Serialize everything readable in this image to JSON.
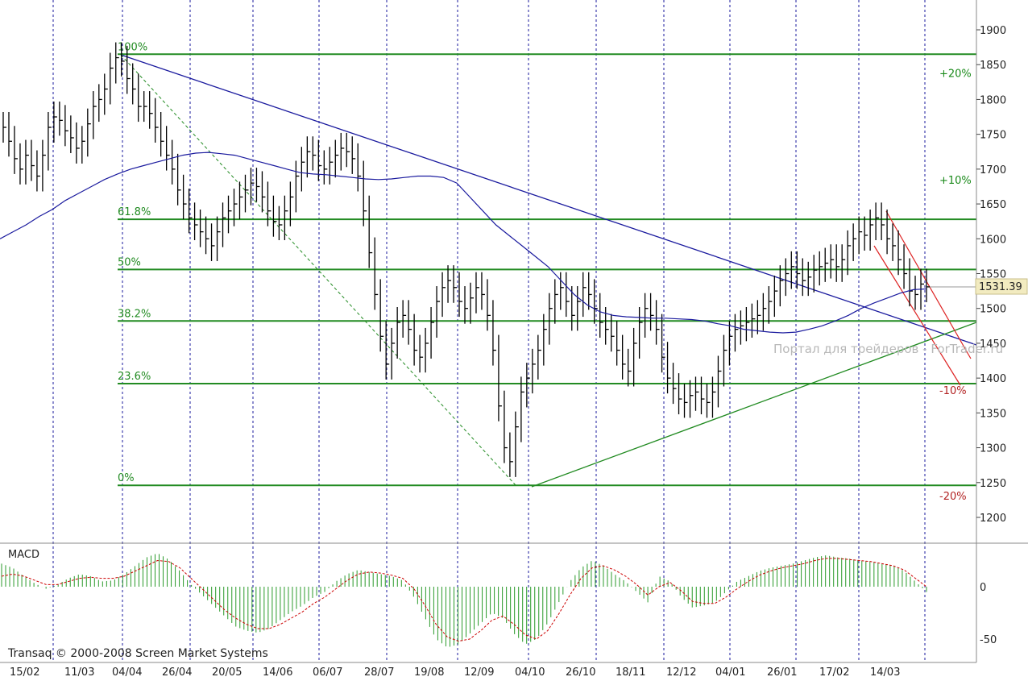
{
  "chart_data": {
    "type": "bar",
    "price_axis": {
      "ticks": [
        1900,
        1850,
        1800,
        1750,
        1700,
        1650,
        1600,
        1550,
        1500,
        1450,
        1400,
        1350,
        1300,
        1250,
        1200
      ],
      "range": [
        1180,
        1920
      ]
    },
    "date_axis": {
      "labels": [
        "15/02",
        "11/03",
        "04/04",
        "26/04",
        "20/05",
        "14/06",
        "06/07",
        "28/07",
        "19/08",
        "12/09",
        "04/10",
        "26/10",
        "18/11",
        "12/12",
        "04/01",
        "26/01",
        "17/02",
        "14/03"
      ]
    },
    "last_price": "1531.39",
    "fibonacci": [
      {
        "label": "100%",
        "value": 1865
      },
      {
        "label": "61.8%",
        "value": 1628
      },
      {
        "label": "50%",
        "value": 1556
      },
      {
        "label": "38.2%",
        "value": 1482
      },
      {
        "label": "23.6%",
        "value": 1392
      },
      {
        "label": "0%",
        "value": 1246
      }
    ],
    "percent_labels": [
      {
        "label": "+20%",
        "value": 1838,
        "sign": "pos"
      },
      {
        "label": "+10%",
        "value": 1685,
        "sign": "pos"
      },
      {
        "label": "-10%",
        "value": 1383,
        "sign": "neg"
      },
      {
        "label": "-20%",
        "value": 1231,
        "sign": "neg"
      }
    ],
    "price_series": [
      1760,
      1740,
      1715,
      1700,
      1720,
      1705,
      1690,
      1720,
      1760,
      1775,
      1770,
      1755,
      1745,
      1730,
      1740,
      1765,
      1790,
      1800,
      1815,
      1845,
      1860,
      1855,
      1830,
      1815,
      1790,
      1790,
      1780,
      1760,
      1740,
      1720,
      1700,
      1670,
      1650,
      1630,
      1620,
      1610,
      1600,
      1590,
      1610,
      1630,
      1640,
      1650,
      1660,
      1670,
      1680,
      1675,
      1660,
      1640,
      1625,
      1620,
      1640,
      1660,
      1690,
      1710,
      1725,
      1720,
      1705,
      1700,
      1710,
      1720,
      1730,
      1725,
      1715,
      1690,
      1640,
      1580,
      1520,
      1460,
      1420,
      1450,
      1480,
      1490,
      1470,
      1440,
      1430,
      1450,
      1480,
      1510,
      1530,
      1540,
      1530,
      1510,
      1500,
      1515,
      1530,
      1520,
      1490,
      1440,
      1360,
      1300,
      1280,
      1330,
      1380,
      1400,
      1420,
      1440,
      1470,
      1500,
      1520,
      1530,
      1510,
      1490,
      1510,
      1530,
      1520,
      1500,
      1480,
      1470,
      1460,
      1440,
      1420,
      1410,
      1450,
      1480,
      1500,
      1490,
      1470,
      1430,
      1400,
      1385,
      1370,
      1365,
      1375,
      1380,
      1370,
      1365,
      1380,
      1410,
      1440,
      1460,
      1470,
      1475,
      1480,
      1485,
      1490,
      1500,
      1510,
      1525,
      1540,
      1550,
      1560,
      1550,
      1540,
      1545,
      1555,
      1560,
      1565,
      1570,
      1560,
      1570,
      1590,
      1600,
      1610,
      1605,
      1620,
      1630,
      1620,
      1600,
      1590,
      1570,
      1550,
      1525,
      1520,
      1535,
      1531
    ],
    "ma_series": [
      1600,
      1610,
      1620,
      1632,
      1642,
      1655,
      1665,
      1675,
      1685,
      1693,
      1700,
      1705,
      1710,
      1715,
      1720,
      1723,
      1724,
      1722,
      1720,
      1715,
      1710,
      1705,
      1700,
      1695,
      1693,
      1692,
      1690,
      1688,
      1686,
      1685,
      1686,
      1688,
      1690,
      1690,
      1688,
      1680,
      1660,
      1640,
      1620,
      1605,
      1590,
      1575,
      1560,
      1540,
      1520,
      1505,
      1495,
      1490,
      1488,
      1487,
      1486,
      1486,
      1485,
      1484,
      1482,
      1478,
      1475,
      1470,
      1468,
      1466,
      1465,
      1466,
      1470,
      1475,
      1482,
      1490,
      1500,
      1508,
      1515,
      1522,
      1527,
      1528
    ],
    "macd": {
      "title": "MACD",
      "ticks": [
        0,
        -50
      ],
      "range": [
        -65,
        35
      ],
      "histogram": [
        22,
        18,
        10,
        3,
        -2,
        2,
        8,
        12,
        10,
        5,
        6,
        12,
        20,
        28,
        32,
        26,
        15,
        2,
        -8,
        -18,
        -28,
        -38,
        -42,
        -44,
        -40,
        -32,
        -24,
        -18,
        -10,
        -5,
        5,
        12,
        16,
        14,
        12,
        10,
        6,
        -10,
        -30,
        -50,
        -58,
        -55,
        -45,
        -35,
        -25,
        -30,
        -45,
        -55,
        -50,
        -35,
        -15,
        5,
        18,
        25,
        20,
        12,
        5,
        -5,
        -15,
        10,
        5,
        -10,
        -20,
        -18,
        -15,
        -5,
        5,
        10,
        15,
        18,
        20,
        22,
        25,
        28,
        30,
        28,
        27,
        25,
        24,
        22,
        20,
        15,
        5,
        -5
      ],
      "signal": [
        10,
        12,
        10,
        6,
        2,
        2,
        5,
        8,
        9,
        8,
        8,
        10,
        15,
        20,
        25,
        24,
        18,
        8,
        -2,
        -12,
        -22,
        -30,
        -36,
        -40,
        -40,
        -36,
        -30,
        -24,
        -16,
        -10,
        -2,
        6,
        12,
        14,
        13,
        11,
        8,
        -2,
        -18,
        -36,
        -48,
        -52,
        -50,
        -42,
        -32,
        -28,
        -36,
        -46,
        -50,
        -42,
        -26,
        -8,
        8,
        18,
        20,
        16,
        10,
        2,
        -8,
        0,
        4,
        -4,
        -14,
        -16,
        -16,
        -10,
        -2,
        5,
        11,
        15,
        18,
        20,
        22,
        25,
        27,
        27,
        26,
        25,
        24,
        22,
        20,
        16,
        8,
        0
      ]
    }
  },
  "watermark": "Портал для трейдеров - ForTrader.ru",
  "copyright": "Transaq © 2000-2008 Screen Market Systems",
  "colors": {
    "fib_line": "#228b22",
    "trend_line": "#1a1a9e",
    "ma_line": "#1a1a9e",
    "support_line": "#228b22",
    "channel_line": "#dd2222",
    "bars": "#000000",
    "macd_hist": "#2a9a2a",
    "macd_signal": "#cc0000",
    "grid_dash": "#1a1a9e"
  }
}
